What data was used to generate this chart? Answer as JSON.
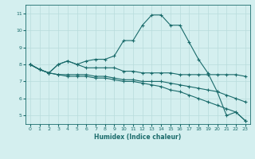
{
  "xlabel": "Humidex (Indice chaleur)",
  "background_color": "#d4efef",
  "grid_color": "#b8dcdc",
  "line_color": "#1a6b6b",
  "xlim": [
    -0.5,
    23.5
  ],
  "ylim": [
    4.5,
    11.5
  ],
  "yticks": [
    5,
    6,
    7,
    8,
    9,
    10,
    11
  ],
  "xticks": [
    0,
    1,
    2,
    3,
    4,
    5,
    6,
    7,
    8,
    9,
    10,
    11,
    12,
    13,
    14,
    15,
    16,
    17,
    18,
    19,
    20,
    21,
    22,
    23
  ],
  "line1_x": [
    0,
    1,
    2,
    3,
    4,
    5,
    6,
    7,
    8,
    9,
    10,
    11,
    12,
    13,
    14,
    15,
    16,
    17,
    18,
    19,
    20,
    21,
    22,
    23
  ],
  "line1_y": [
    8.0,
    7.7,
    7.5,
    8.0,
    8.2,
    8.0,
    8.2,
    8.3,
    8.3,
    8.5,
    9.4,
    9.4,
    10.3,
    10.9,
    10.9,
    10.3,
    10.3,
    9.3,
    8.3,
    7.5,
    6.4,
    5.0,
    5.2,
    4.7
  ],
  "line2_x": [
    0,
    1,
    2,
    3,
    4,
    5,
    6,
    7,
    8,
    9,
    10,
    11,
    12,
    13,
    14,
    15,
    16,
    17,
    18,
    19,
    20,
    21,
    22,
    23
  ],
  "line2_y": [
    8.0,
    7.7,
    7.5,
    8.0,
    8.2,
    8.0,
    7.8,
    7.8,
    7.8,
    7.8,
    7.6,
    7.6,
    7.5,
    7.5,
    7.5,
    7.5,
    7.4,
    7.4,
    7.4,
    7.4,
    7.4,
    7.4,
    7.4,
    7.3
  ],
  "line3_x": [
    0,
    1,
    2,
    3,
    4,
    5,
    6,
    7,
    8,
    9,
    10,
    11,
    12,
    13,
    14,
    15,
    16,
    17,
    18,
    19,
    20,
    21,
    22,
    23
  ],
  "line3_y": [
    8.0,
    7.7,
    7.5,
    7.4,
    7.4,
    7.4,
    7.4,
    7.3,
    7.3,
    7.2,
    7.1,
    7.1,
    7.0,
    7.0,
    7.0,
    6.9,
    6.8,
    6.7,
    6.6,
    6.5,
    6.4,
    6.2,
    6.0,
    5.8
  ],
  "line4_x": [
    0,
    1,
    2,
    3,
    4,
    5,
    6,
    7,
    8,
    9,
    10,
    11,
    12,
    13,
    14,
    15,
    16,
    17,
    18,
    19,
    20,
    21,
    22,
    23
  ],
  "line4_y": [
    8.0,
    7.7,
    7.5,
    7.4,
    7.3,
    7.3,
    7.3,
    7.2,
    7.2,
    7.1,
    7.0,
    7.0,
    6.9,
    6.8,
    6.7,
    6.5,
    6.4,
    6.2,
    6.0,
    5.8,
    5.6,
    5.4,
    5.2,
    4.7
  ]
}
